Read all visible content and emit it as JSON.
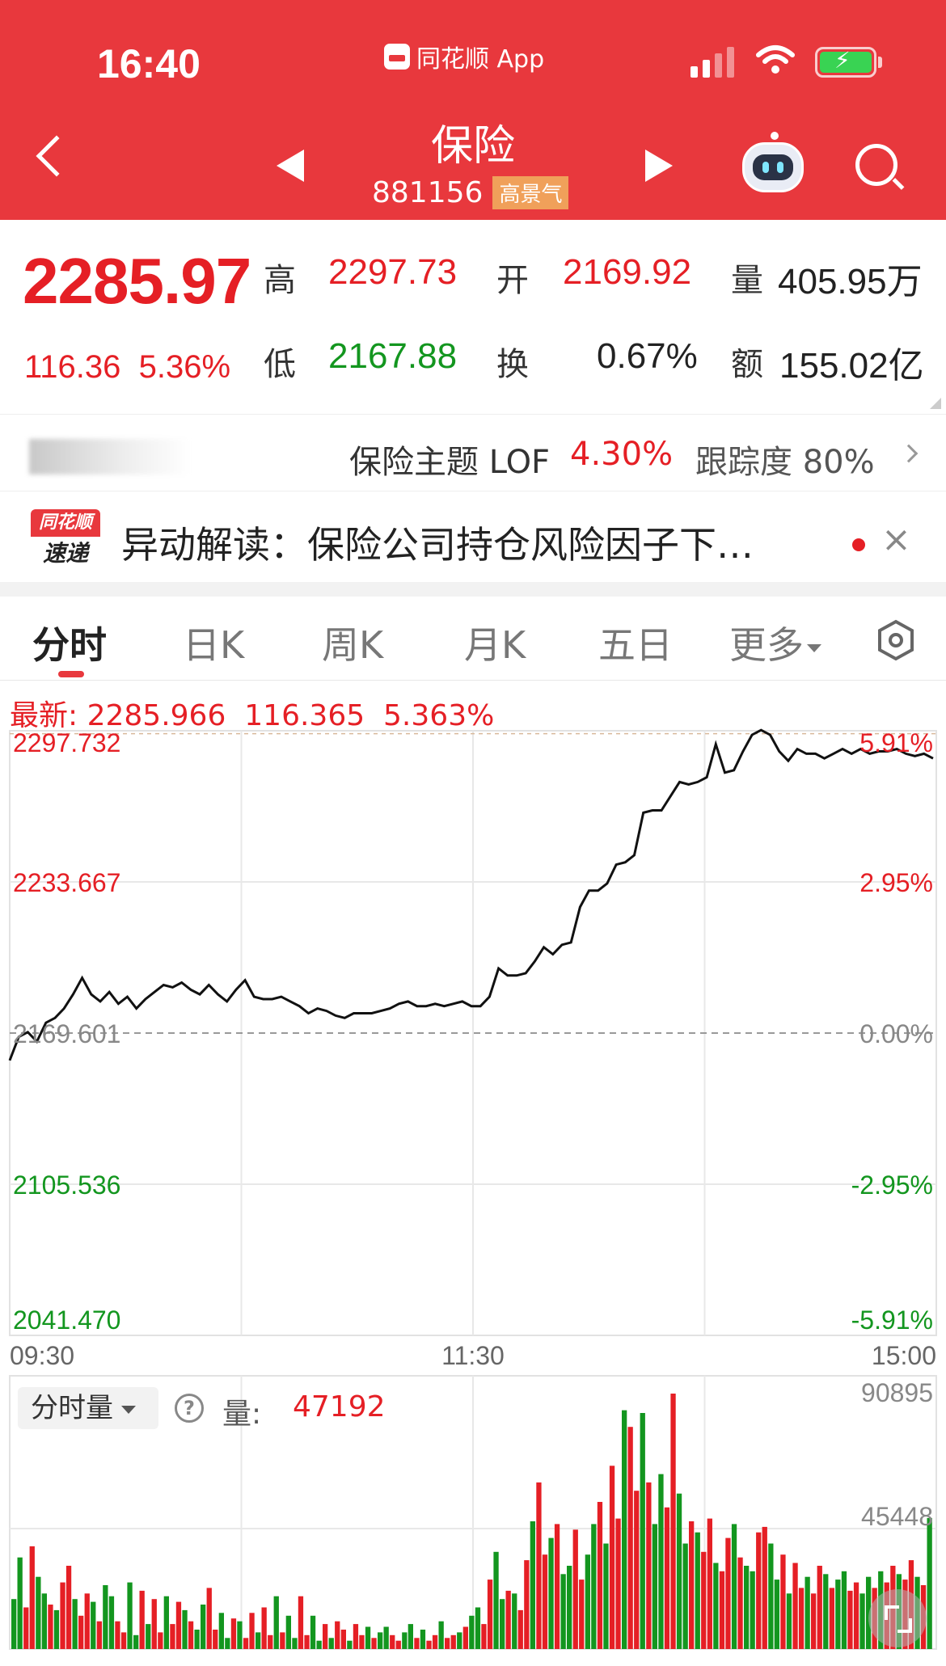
{
  "status_bar": {
    "time": "16:40",
    "app_name": "同花顺 App"
  },
  "header": {
    "title": "保险",
    "code": "881156",
    "tag": "高景气"
  },
  "quote": {
    "price": "2285.97",
    "change": "116.36",
    "change_pct": "5.36%",
    "high_label": "高",
    "high": "2297.73",
    "open_label": "开",
    "open": "2169.92",
    "vol_label": "量",
    "vol": "405.95万",
    "low_label": "低",
    "low": "2167.88",
    "turnover_label": "换",
    "turnover": "0.67%",
    "amount_label": "额",
    "amount": "155.02亿"
  },
  "lof": {
    "name": "保险主题 LOF",
    "pct": "4.30%",
    "tracking": "跟踪度 80%"
  },
  "news": {
    "logo_top": "同花顺",
    "logo_bottom": "速递",
    "text": "异动解读：保险公司持仓风险因子下…"
  },
  "tabs": [
    "分时",
    "日K",
    "周K",
    "月K",
    "五日",
    "更多"
  ],
  "chart_info": {
    "latest_label": "最新:",
    "latest": "2285.966",
    "change": "116.365",
    "change_pct": "5.363%"
  },
  "colors": {
    "up": "#e51f25",
    "down": "#13961f",
    "header": "#e8383d"
  },
  "chart_data": {
    "type": "line",
    "title": "",
    "y_left_ticks": [
      "2297.732",
      "2233.667",
      "2169.601",
      "2105.536",
      "2041.470"
    ],
    "y_right_ticks": [
      "5.91%",
      "2.95%",
      "0.00%",
      "-2.95%",
      "-5.91%"
    ],
    "x_ticks": [
      "09:30",
      "11:30",
      "15:00"
    ],
    "ylim": [
      2041.47,
      2297.732
    ],
    "baseline": 2169.601,
    "price_series": [
      2158,
      2168,
      2170,
      2166,
      2174,
      2176,
      2180,
      2186,
      2193,
      2186,
      2183,
      2187,
      2182,
      2185,
      2180,
      2184,
      2187,
      2190,
      2189,
      2191,
      2188,
      2186,
      2190,
      2186,
      2183,
      2188,
      2192,
      2185,
      2184,
      2184,
      2185,
      2183,
      2181,
      2178,
      2180,
      2179,
      2177,
      2176,
      2178,
      2178,
      2178,
      2179,
      2180,
      2182,
      2183,
      2181,
      2181,
      2182,
      2181,
      2182,
      2183,
      2181,
      2181,
      2185,
      2197,
      2194,
      2194,
      2195,
      2200,
      2206,
      2203,
      2207,
      2208,
      2223,
      2230,
      2230,
      2233,
      2241,
      2242,
      2245,
      2263,
      2264,
      2264,
      2270,
      2276,
      2275,
      2276,
      2278,
      2292,
      2280,
      2281,
      2289,
      2296,
      2298,
      2296,
      2289,
      2285,
      2290,
      2288,
      2288,
      2286,
      2288,
      2290,
      2288,
      2290,
      2288,
      2289,
      2289,
      2290,
      2288,
      2287,
      2288,
      2286
    ],
    "volume_ymax": "90895",
    "volume_mid": "45448",
    "volume_label": "分时量",
    "volume_value_label": "量:",
    "volume_value": "47192",
    "volume_series": [
      18000,
      33000,
      15000,
      37000,
      26000,
      20000,
      16000,
      14000,
      24000,
      30000,
      18000,
      12000,
      20000,
      17000,
      10000,
      23000,
      19000,
      10000,
      6000,
      24000,
      5000,
      21000,
      9000,
      18000,
      6000,
      19000,
      9000,
      17000,
      14000,
      10000,
      7000,
      16000,
      22000,
      7000,
      13000,
      4000,
      11000,
      10000,
      4000,
      13000,
      6000,
      15000,
      5000,
      19000,
      6000,
      12000,
      4000,
      19000,
      5000,
      12000,
      3000,
      9000,
      4000,
      10000,
      7000,
      3000,
      9000,
      5000,
      8000,
      4000,
      6000,
      8000,
      5000,
      3000,
      6000,
      9000,
      4000,
      7000,
      3000,
      5000,
      10000,
      4000,
      5000,
      6000,
      8000,
      12000,
      15000,
      9000,
      25000,
      35000,
      18000,
      21000,
      20000,
      14000,
      32000,
      46000,
      60000,
      34000,
      40000,
      45000,
      27000,
      30000,
      43000,
      25000,
      34000,
      45000,
      53000,
      38000,
      66000,
      47000,
      86000,
      80000,
      57000,
      85000,
      60000,
      45000,
      63000,
      51000,
      92000,
      56000,
      38000,
      46000,
      42000,
      35000,
      47000,
      31000,
      28000,
      40000,
      45000,
      33000,
      30000,
      28000,
      42000,
      44000,
      38000,
      25000,
      34000,
      20000,
      31000,
      22000,
      26000,
      20000,
      30000,
      27000,
      22000,
      25000,
      28000,
      21000,
      24000,
      20000,
      26000,
      22000,
      28000,
      24000,
      30000,
      27000,
      25000,
      32000,
      26000,
      23000,
      47192
    ]
  }
}
